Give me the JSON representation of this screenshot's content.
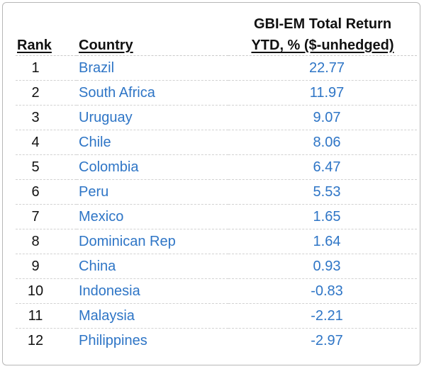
{
  "header": {
    "rank": "Rank",
    "country": "Country",
    "value_line1": "GBI-EM Total Return",
    "value_line2": "YTD, % ($-unhedged)"
  },
  "rows": [
    {
      "rank": "1",
      "country": "Brazil",
      "value": "22.77"
    },
    {
      "rank": "2",
      "country": "South Africa",
      "value": "11.97"
    },
    {
      "rank": "3",
      "country": "Uruguay",
      "value": "9.07"
    },
    {
      "rank": "4",
      "country": "Chile",
      "value": "8.06"
    },
    {
      "rank": "5",
      "country": "Colombia",
      "value": "6.47"
    },
    {
      "rank": "6",
      "country": "Peru",
      "value": "5.53"
    },
    {
      "rank": "7",
      "country": "Mexico",
      "value": "1.65"
    },
    {
      "rank": "8",
      "country": "Dominican Rep",
      "value": "1.64"
    },
    {
      "rank": "9",
      "country": "China",
      "value": "0.93"
    },
    {
      "rank": "10",
      "country": "Indonesia",
      "value": "-0.83"
    },
    {
      "rank": "11",
      "country": "Malaysia",
      "value": "-2.21"
    },
    {
      "rank": "12",
      "country": "Philippines",
      "value": "-2.97"
    }
  ],
  "colors": {
    "country_text": "#2e75c6",
    "value_text": "#2e75c6",
    "header_text": "#111111",
    "border": "#b7b7b7"
  }
}
